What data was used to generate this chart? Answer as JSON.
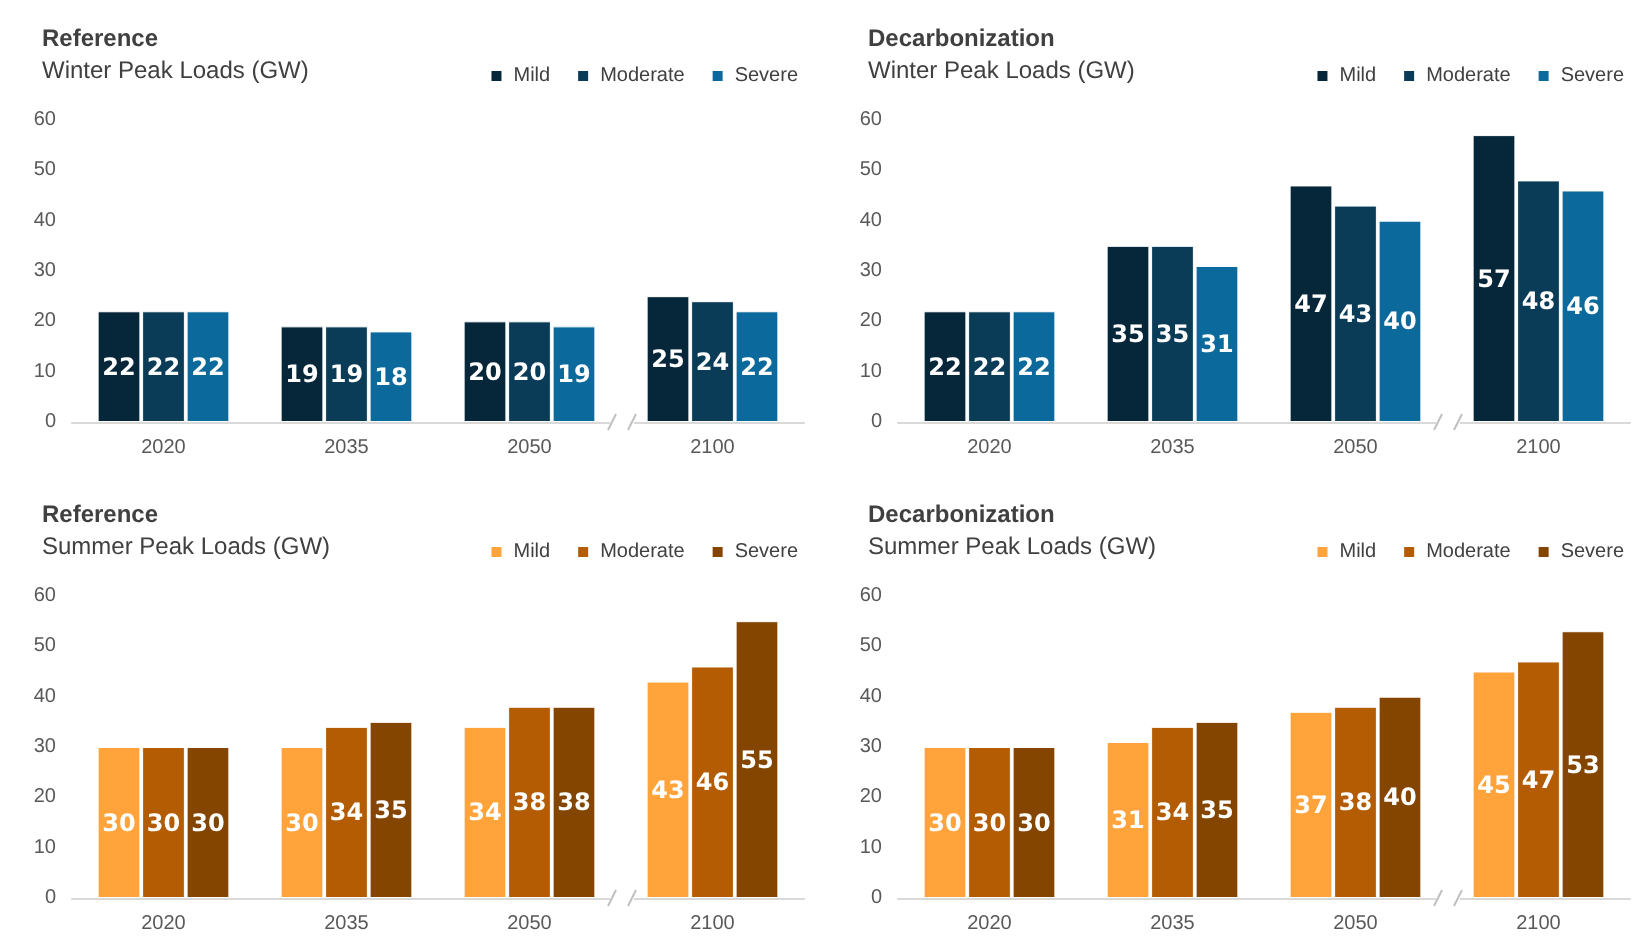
{
  "chart_data": [
    {
      "type": "bar",
      "title": "Reference",
      "subtitle": "Winter Peak Loads (GW)",
      "categories": [
        "2020",
        "2035",
        "2050",
        "2100"
      ],
      "series": [
        {
          "name": "Mild",
          "color": "#06273a",
          "values": [
            22,
            19,
            20,
            25
          ]
        },
        {
          "name": "Moderate",
          "color": "#0a3b57",
          "values": [
            22,
            19,
            20,
            24
          ]
        },
        {
          "name": "Severe",
          "color": "#0b6a9b",
          "values": [
            22,
            18,
            19,
            22
          ]
        }
      ],
      "ylim": [
        0,
        60
      ],
      "yticks": [
        0,
        10,
        20,
        30,
        40,
        50,
        60
      ],
      "grid": false,
      "legend": "top right",
      "data_labels": true
    },
    {
      "type": "bar",
      "title": "Decarbonization",
      "subtitle": "Winter Peak Loads (GW)",
      "categories": [
        "2020",
        "2035",
        "2050",
        "2100"
      ],
      "series": [
        {
          "name": "Mild",
          "color": "#06273a",
          "values": [
            22,
            35,
            47,
            57
          ]
        },
        {
          "name": "Moderate",
          "color": "#0a3b57",
          "values": [
            22,
            35,
            43,
            48
          ]
        },
        {
          "name": "Severe",
          "color": "#0b6a9b",
          "values": [
            22,
            31,
            40,
            46
          ]
        }
      ],
      "ylim": [
        0,
        60
      ],
      "yticks": [
        0,
        10,
        20,
        30,
        40,
        50,
        60
      ],
      "grid": false,
      "legend": "top right",
      "data_labels": true
    },
    {
      "type": "bar",
      "title": "Reference",
      "subtitle": "Summer Peak Loads (GW)",
      "categories": [
        "2020",
        "2035",
        "2050",
        "2100"
      ],
      "series": [
        {
          "name": "Mild",
          "color": "#ffa33a",
          "values": [
            30,
            30,
            34,
            43
          ]
        },
        {
          "name": "Moderate",
          "color": "#b35c04",
          "values": [
            30,
            34,
            38,
            46
          ]
        },
        {
          "name": "Severe",
          "color": "#834500",
          "values": [
            30,
            35,
            38,
            55
          ]
        }
      ],
      "ylim": [
        0,
        60
      ],
      "yticks": [
        0,
        10,
        20,
        30,
        40,
        50,
        60
      ],
      "grid": false,
      "legend": "top right",
      "data_labels": true
    },
    {
      "type": "bar",
      "title": "Decarbonization",
      "subtitle": "Summer Peak Loads (GW)",
      "categories": [
        "2020",
        "2035",
        "2050",
        "2100"
      ],
      "series": [
        {
          "name": "Mild",
          "color": "#ffa33a",
          "values": [
            30,
            31,
            37,
            45
          ]
        },
        {
          "name": "Moderate",
          "color": "#b35c04",
          "values": [
            30,
            34,
            38,
            47
          ]
        },
        {
          "name": "Severe",
          "color": "#834500",
          "values": [
            30,
            35,
            40,
            53
          ]
        }
      ],
      "ylim": [
        0,
        60
      ],
      "yticks": [
        0,
        10,
        20,
        30,
        40,
        50,
        60
      ],
      "grid": false,
      "legend": "top right",
      "data_labels": true
    }
  ]
}
